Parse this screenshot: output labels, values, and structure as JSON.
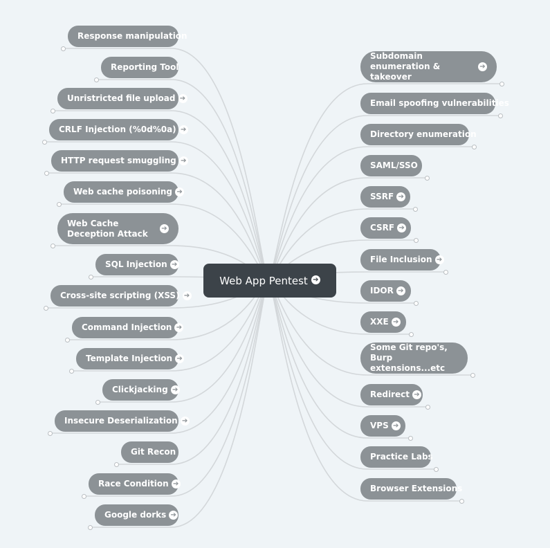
{
  "root": {
    "label": "Web App Pentest",
    "icon": "arrow-right-circle-icon"
  },
  "colors": {
    "background": "#eff4f7",
    "node": "#8c9296",
    "root": "#3c4349",
    "connector": "#d3d7da"
  },
  "left": [
    {
      "label": "Response manipulation",
      "expandable": false
    },
    {
      "label": "Reporting Tool",
      "expandable": false
    },
    {
      "label": "Unristricted file upload",
      "expandable": true
    },
    {
      "label": "CRLF Injection (%0d%0a)",
      "expandable": true
    },
    {
      "label": "HTTP request smuggling",
      "expandable": true
    },
    {
      "label": "Web cache poisoning",
      "expandable": true
    },
    {
      "label": "Web Cache Deception Attack",
      "expandable": true
    },
    {
      "label": "SQL Injection",
      "expandable": true
    },
    {
      "label": "Cross-site scripting (XSS)",
      "expandable": true
    },
    {
      "label": "Command Injection",
      "expandable": true
    },
    {
      "label": "Template Injection",
      "expandable": true
    },
    {
      "label": "Clickjacking",
      "expandable": true
    },
    {
      "label": "Insecure Deserialization",
      "expandable": true
    },
    {
      "label": "Git Recon",
      "expandable": false
    },
    {
      "label": "Race Condition",
      "expandable": true
    },
    {
      "label": "Google dorks",
      "expandable": true
    }
  ],
  "right": [
    {
      "label": "Subdomain enumeration & takeover",
      "expandable": true
    },
    {
      "label": "Email spoofing vulnerabilities",
      "expandable": false
    },
    {
      "label": "Directory enumeration",
      "expandable": false
    },
    {
      "label": "SAML/SSO",
      "expandable": false
    },
    {
      "label": "SSRF",
      "expandable": true
    },
    {
      "label": "CSRF",
      "expandable": true
    },
    {
      "label": "File Inclusion",
      "expandable": true
    },
    {
      "label": "IDOR",
      "expandable": true
    },
    {
      "label": "XXE",
      "expandable": true
    },
    {
      "label": "Some Git repo's, Burp extensions...etc",
      "expandable": false
    },
    {
      "label": "Redirect",
      "expandable": true
    },
    {
      "label": "VPS",
      "expandable": true
    },
    {
      "label": "Practice Labs",
      "expandable": false
    },
    {
      "label": "Browser Extensions",
      "expandable": false
    }
  ]
}
